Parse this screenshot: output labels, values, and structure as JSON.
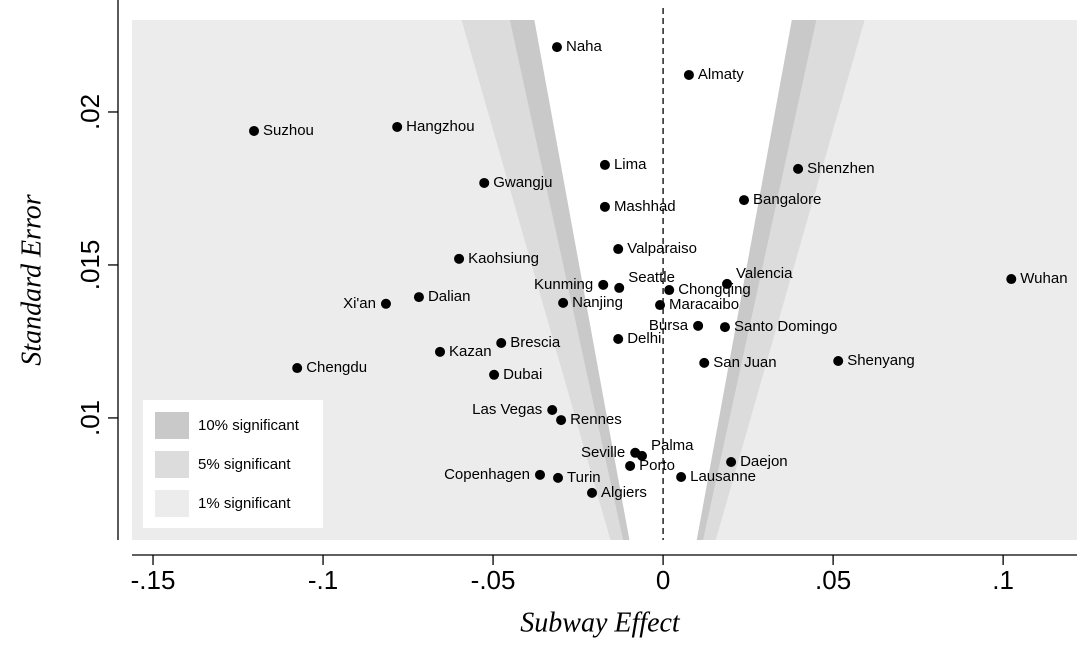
{
  "chart_data": {
    "type": "funnel-scatter",
    "xlabel": "Subway Effect",
    "ylabel": "Standard Error",
    "xlim": [
      -0.1603,
      0.1229
    ],
    "ylim": [
      0.00552,
      0.02366
    ],
    "xticks": [
      {
        "value": -0.15,
        "label": "-.15"
      },
      {
        "value": -0.1,
        "label": "-.1"
      },
      {
        "value": -0.05,
        "label": "-.05"
      },
      0,
      {
        "value": 0.05,
        "label": ".05"
      },
      {
        "value": 0.1,
        "label": ".1"
      }
    ],
    "yticks": [
      {
        "value": 0.01,
        "label": ".01"
      },
      {
        "value": 0.015,
        "label": ".015"
      },
      {
        "value": 0.02,
        "label": ".02"
      }
    ],
    "reference_line_x": 0,
    "bands": [
      {
        "name": "10% significant",
        "color": "#c9c9c9",
        "z": 1.645
      },
      {
        "name": "5% significant",
        "color": "#dcdcdc",
        "z": 1.96
      },
      {
        "name": "1% significant",
        "color": "#ececec",
        "z": 2.576
      }
    ],
    "legend_position": "lower left",
    "point_color": "#000000",
    "labels": [
      "Naha",
      "Almaty",
      "Suzhou",
      "Hangzhou",
      "Lima",
      "Shenzhen",
      "Gwangju",
      "Bangalore",
      "Mashhad",
      "Valparaiso",
      "Kaohsiung",
      "Wuhan",
      "Kunming",
      "Seattle",
      "Valencia",
      "Chongqing",
      "Dalian",
      "Xi'an",
      "Nanjing",
      "Maracaibo",
      "Bursa",
      "Santo Domingo",
      "Delhi",
      "Brescia",
      "Kazan",
      "San Juan",
      "Shenyang",
      "Chengdu",
      "Dubai",
      "Las Vegas",
      "Rennes",
      "Seville",
      "Palma",
      "Porto",
      "Daejon",
      "Copenhagen",
      "Turin",
      "Lausanne",
      "Algiers"
    ],
    "x": [
      -0.0312,
      0.0076,
      -0.1203,
      -0.0782,
      -0.0171,
      0.0397,
      -0.0526,
      0.0238,
      -0.0171,
      -0.0132,
      -0.06,
      0.1024,
      -0.0176,
      -0.0129,
      0.0188,
      0.0018,
      -0.0718,
      -0.0815,
      -0.0294,
      -0.0009,
      0.0103,
      0.0182,
      -0.0132,
      -0.0476,
      -0.0656,
      0.0121,
      0.0515,
      -0.1076,
      -0.0497,
      -0.0326,
      -0.03,
      -0.0082,
      -0.0062,
      -0.0097,
      0.02,
      -0.0362,
      -0.0309,
      0.0053,
      -0.0209
    ],
    "y": [
      0.02212,
      0.02121,
      0.01938,
      0.01951,
      0.01827,
      0.01814,
      0.01768,
      0.01712,
      0.0169,
      0.01552,
      0.0152,
      0.01454,
      0.01435,
      0.01425,
      0.01438,
      0.01418,
      0.01395,
      0.01373,
      0.01376,
      0.01369,
      0.01301,
      0.01297,
      0.01258,
      0.01245,
      0.01216,
      0.0118,
      0.01186,
      0.01163,
      0.01141,
      0.01026,
      0.00993,
      0.00886,
      0.00876,
      0.00843,
      0.00856,
      0.00814,
      0.00804,
      0.00807,
      0.00755
    ]
  }
}
